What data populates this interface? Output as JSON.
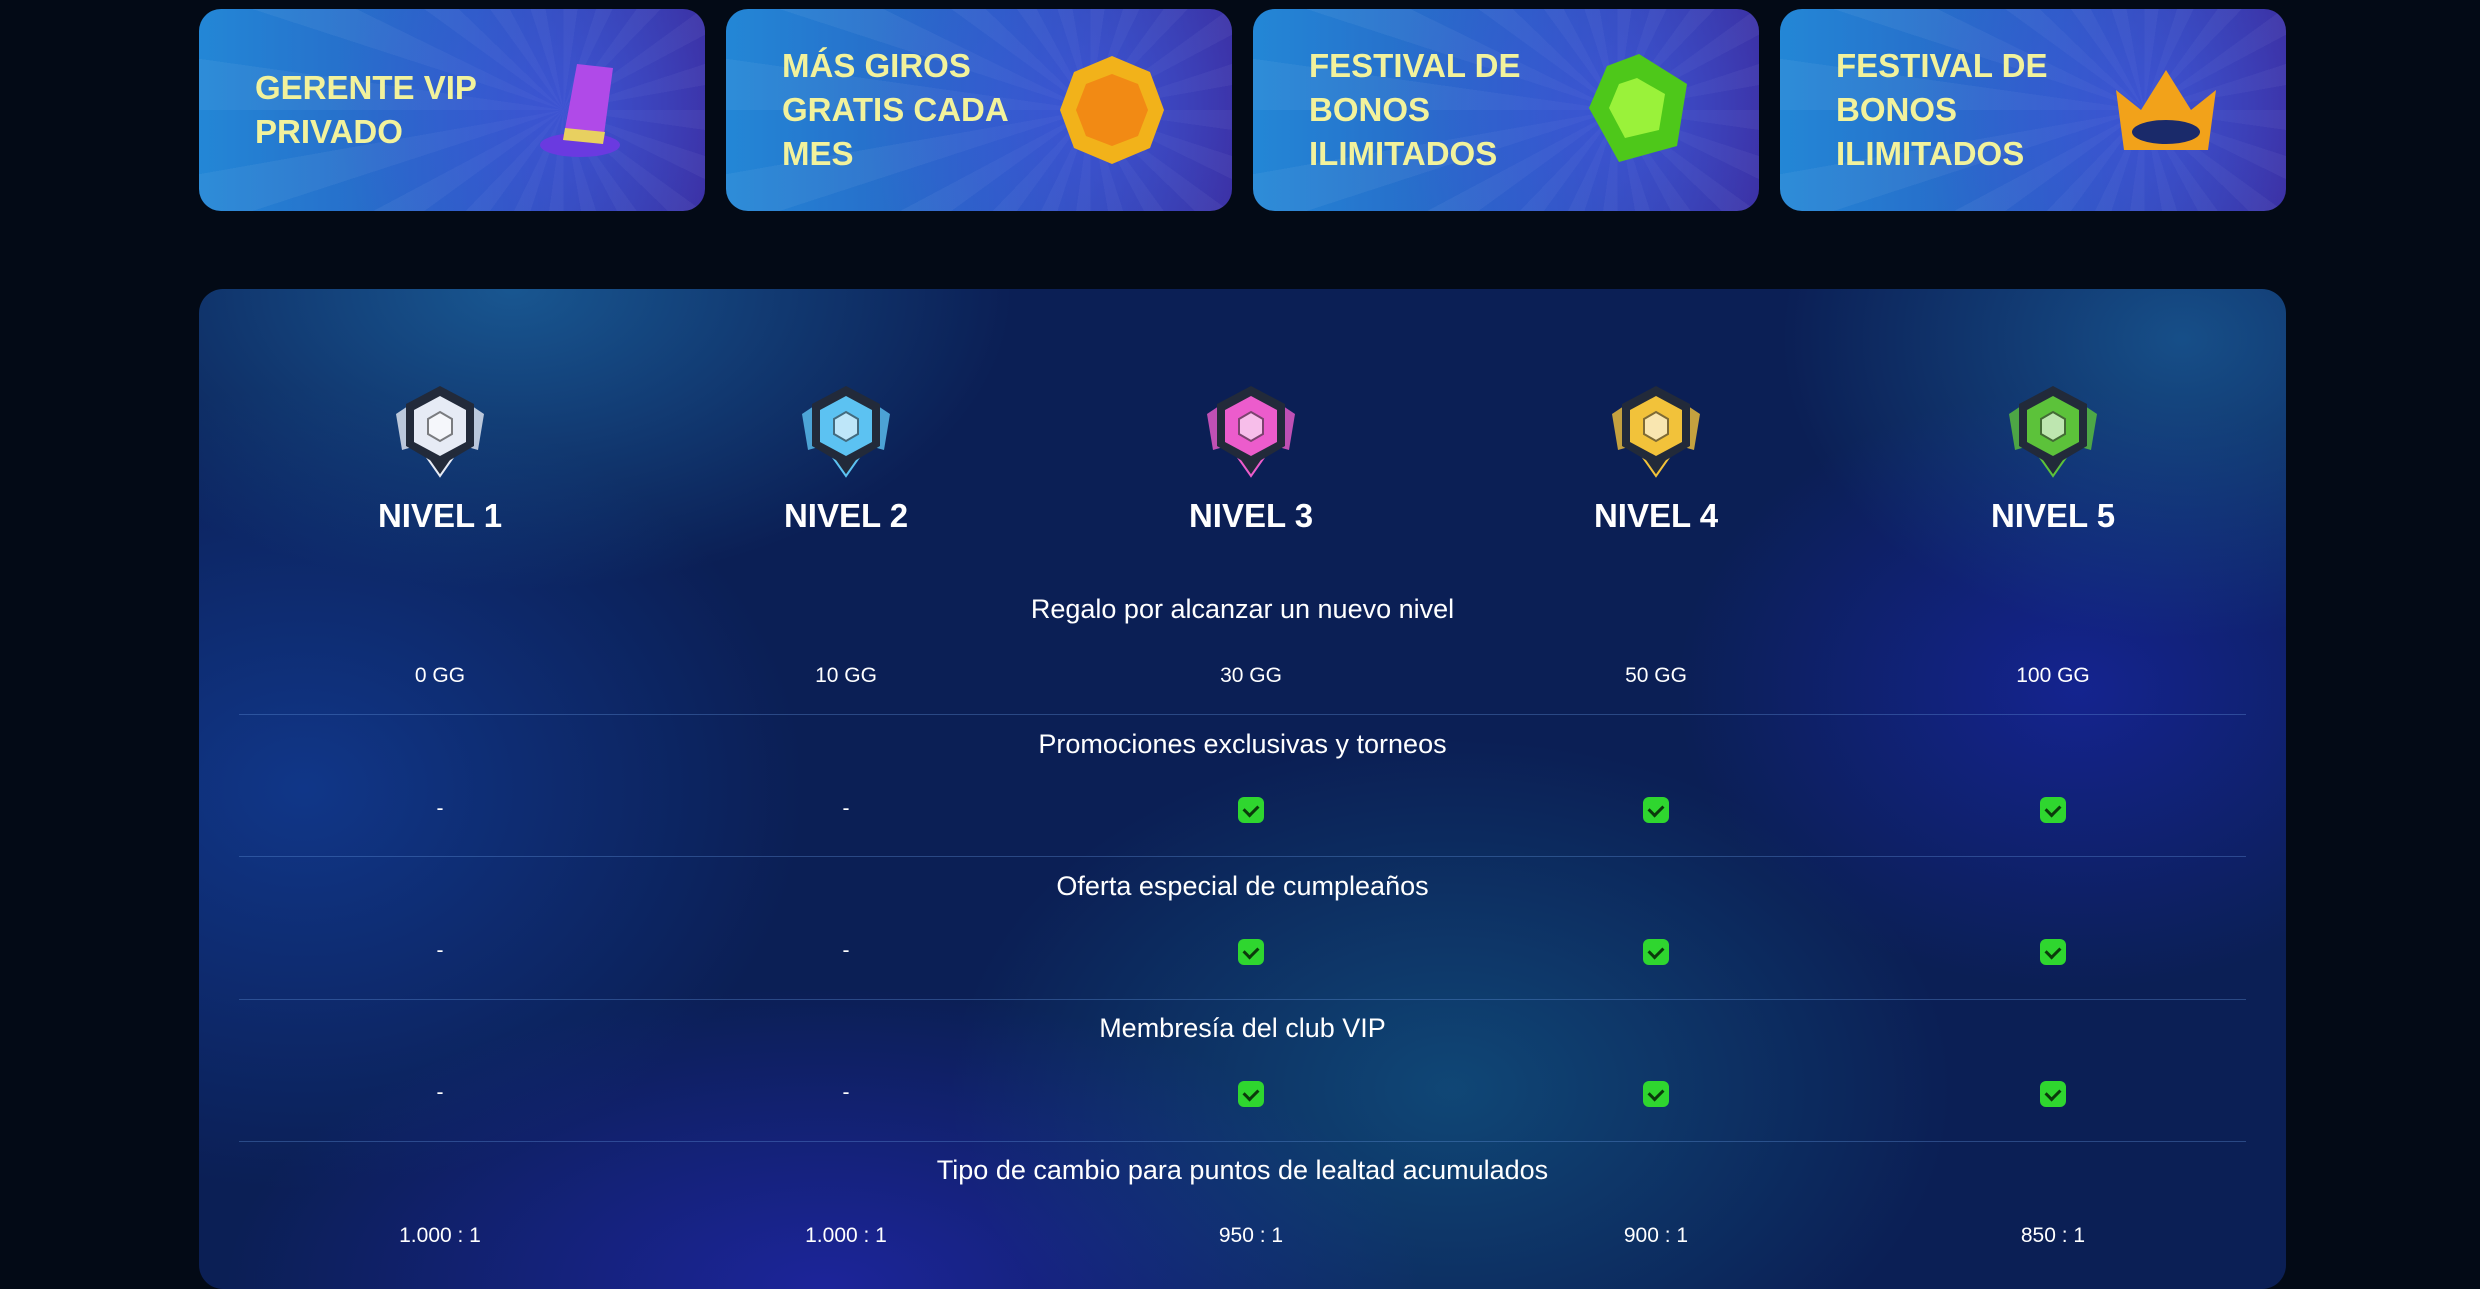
{
  "cards": [
    {
      "label": "GERENTE VIP PRIVADO",
      "icon": "top-hat-icon"
    },
    {
      "label": "MÁS GIROS GRATIS CADA MES",
      "icon": "coin-icon"
    },
    {
      "label": "FESTIVAL DE BONOS ILIMITADOS",
      "icon": "gem-icon"
    },
    {
      "label": "FESTIVAL DE BONOS ILIMITADOS",
      "icon": "crown-icon"
    }
  ],
  "levels": [
    {
      "name": "NIVEL 1",
      "color": "#e6ebf5"
    },
    {
      "name": "NIVEL 2",
      "color": "#5cc2f2"
    },
    {
      "name": "NIVEL 3",
      "color": "#ec5ccc"
    },
    {
      "name": "NIVEL 4",
      "color": "#f2c23a"
    },
    {
      "name": "NIVEL 5",
      "color": "#5cc23a"
    }
  ],
  "rows": [
    {
      "title": "Regalo por alcanzar un nuevo nivel",
      "values": [
        "0 GG",
        "10 GG",
        "30 GG",
        "50 GG",
        "100 GG"
      ]
    },
    {
      "title": "Promociones exclusivas y torneos",
      "values": [
        "-",
        "-",
        "check",
        "check",
        "check"
      ]
    },
    {
      "title": "Oferta especial de cumpleaños",
      "values": [
        "-",
        "-",
        "check",
        "check",
        "check"
      ]
    },
    {
      "title": "Membresía del club VIP",
      "values": [
        "-",
        "-",
        "check",
        "check",
        "check"
      ]
    },
    {
      "title": "Tipo de cambio para puntos de lealtad acumulados",
      "values": [
        "1.000 : 1",
        "1.000 : 1",
        "950 : 1",
        "900 : 1",
        "850 : 1"
      ]
    }
  ]
}
